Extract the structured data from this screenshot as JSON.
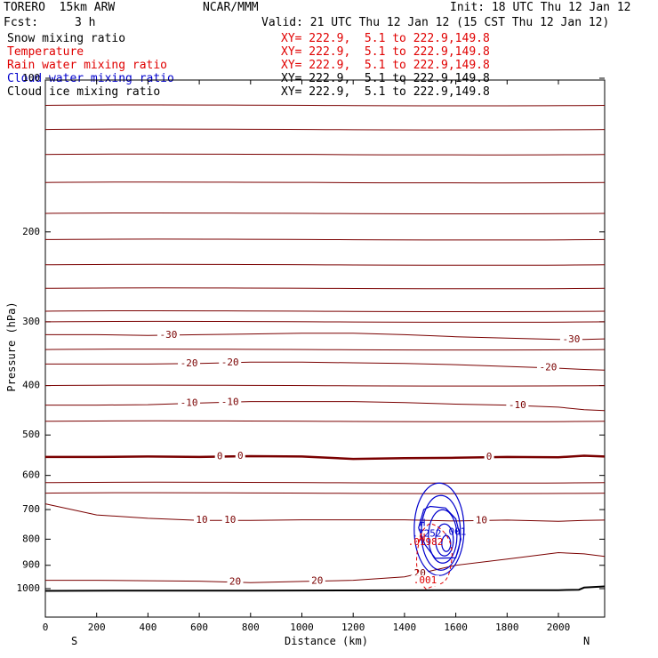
{
  "header": {
    "model": "TORERO  15km ARW",
    "center": "NCAR/MMM",
    "init": "Init: 18 UTC Thu 12 Jan 12",
    "fcst_label": "Fcst:",
    "fcst_value": "3 h",
    "valid": "Valid: 21 UTC Thu 12 Jan 12 (15 CST Thu 12 Jan 12)"
  },
  "legend": [
    {
      "name": "Snow mixing ratio",
      "xy": "XY= 222.9,  5.1 to 222.9,149.8",
      "color": "#000000"
    },
    {
      "name": "Temperature",
      "xy": "XY= 222.9,  5.1 to 222.9,149.8",
      "color": "#e00000"
    },
    {
      "name": "Rain water mixing ratio",
      "xy": "XY= 222.9,  5.1 to 222.9,149.8",
      "color": "#e00000"
    },
    {
      "name": "Cloud water mixing ratio",
      "xy": "XY= 222.9,  5.1 to 222.9,149.8",
      "color": "#0000cc"
    },
    {
      "name": "Cloud ice mixing ratio",
      "xy": "XY= 222.9,  5.1 to 222.9,149.8",
      "color": "#000000"
    }
  ],
  "chart_data": {
    "type": "line",
    "title": "",
    "xlabel": "Distance (km)",
    "ylabel": "Pressure (hPa)",
    "xlim": [
      0,
      2180
    ],
    "ylim": [
      1050,
      90
    ],
    "y_scale": "log-pressure",
    "x_ticks": [
      0,
      200,
      400,
      600,
      800,
      1000,
      1200,
      1400,
      1600,
      1800,
      2000
    ],
    "y_ticks": [
      100,
      200,
      300,
      400,
      500,
      600,
      700,
      800,
      900,
      1000
    ],
    "end_labels": {
      "left": "S",
      "right": "N"
    },
    "colors": {
      "isotherm": "#7a0000",
      "freezing": "#7a0000",
      "rain": "#e00000",
      "cloud_water": "#0000cc",
      "terrain": "#000000"
    },
    "x": [
      0,
      200,
      400,
      600,
      800,
      1000,
      1200,
      1400,
      1600,
      1800,
      2000,
      2100,
      2180
    ],
    "temperature_series": [
      {
        "name": "-30",
        "label_at": [
          [
            480,
            -30
          ],
          [
            2050,
            -30
          ]
        ],
        "values": [
          318,
          318,
          319,
          318,
          317,
          316,
          316,
          318,
          321,
          323,
          325,
          325,
          324
        ]
      },
      {
        "name": "-20",
        "label_at": [
          [
            560,
            -20
          ],
          [
            720,
            -20
          ],
          [
            1960,
            -20
          ]
        ],
        "values": [
          363,
          363,
          363,
          362,
          360,
          360,
          361,
          362,
          364,
          367,
          370,
          372,
          373
        ]
      },
      {
        "name": "-10",
        "label_at": [
          [
            560,
            -10
          ],
          [
            720,
            -10
          ],
          [
            1840,
            -10
          ]
        ],
        "values": [
          437,
          437,
          436,
          433,
          430,
          430,
          430,
          432,
          435,
          437,
          441,
          446,
          448
        ]
      },
      {
        "name": "0",
        "label_at": [
          [
            680,
            0
          ],
          [
            760,
            0
          ],
          [
            1730,
            0
          ]
        ],
        "values": [
          552,
          552,
          551,
          552,
          550,
          551,
          557,
          555,
          554,
          552,
          553,
          549,
          551
        ]
      },
      {
        "name": "10",
        "label_at": [
          [
            610,
            10
          ],
          [
            720,
            10
          ],
          [
            1700,
            10
          ]
        ],
        "values": [
          682,
          717,
          728,
          735,
          735,
          733,
          733,
          733,
          737,
          734,
          738,
          735,
          734
        ]
      },
      {
        "name": "20",
        "label_at": [
          [
            1060,
            20
          ],
          [
            740,
            20
          ],
          [
            1460,
            20
          ]
        ],
        "values": [
          963,
          963,
          965,
          967,
          973,
          968,
          963,
          948,
          900,
          875,
          850,
          855,
          865
        ]
      }
    ],
    "isobar_lines_hpa": [
      113,
      126,
      141,
      160,
      184,
      207,
      232,
      258,
      286,
      300,
      340,
      400,
      470,
      620,
      650
    ],
    "rain_mixing_ratio": {
      "contour_label": ".001",
      "max_label": ".01982",
      "marker": "H",
      "x_range": [
        1440,
        1610
      ],
      "p_range": [
        730,
        1005
      ]
    },
    "cloud_water_mixing_ratio": {
      "contour_label": ".001",
      "max_label": ".7252",
      "marker": "H",
      "x_range": [
        1420,
        1640
      ],
      "p_range": [
        685,
        875
      ]
    },
    "terrain": {
      "x": [
        0,
        400,
        800,
        1200,
        1600,
        2000,
        2080,
        2100,
        2180
      ],
      "p": [
        1010,
        1009,
        1009,
        1008,
        1007,
        1007,
        1005,
        995,
        990
      ]
    }
  }
}
